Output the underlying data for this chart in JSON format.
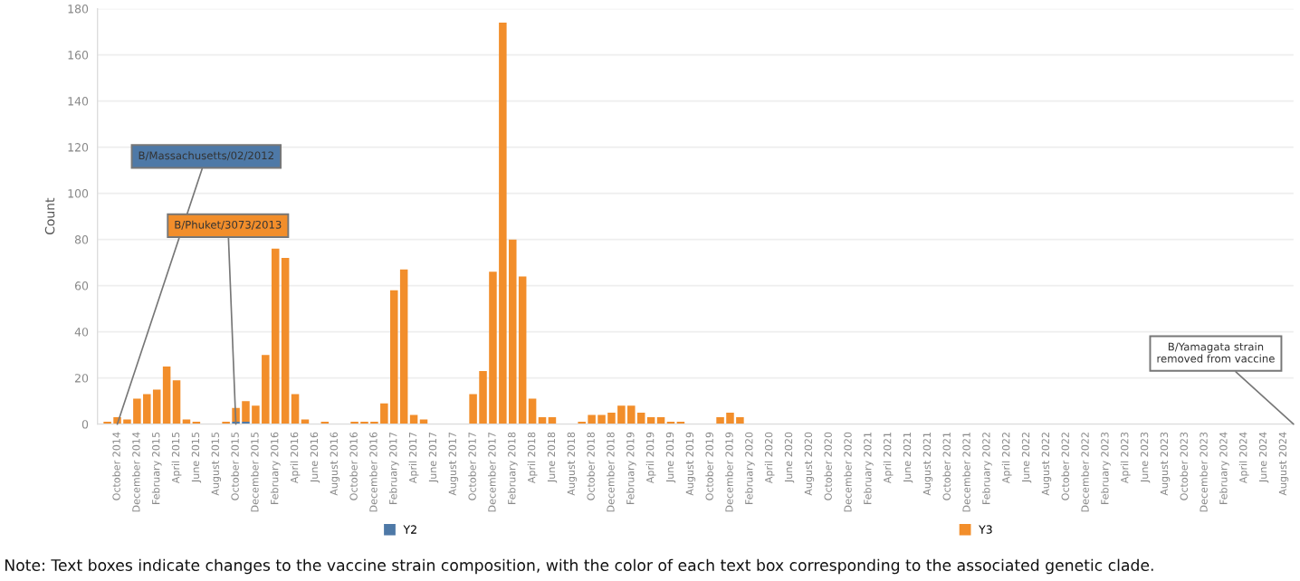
{
  "chart_data": {
    "type": "bar",
    "stacked": true,
    "ylabel": "Count",
    "ylim": [
      0,
      180
    ],
    "yticks": [
      0,
      20,
      40,
      60,
      80,
      100,
      120,
      140,
      160,
      180
    ],
    "grid": "y",
    "legend": "bottom",
    "categories": [
      null,
      "October 2014",
      null,
      "December 2014",
      null,
      "February 2015",
      null,
      "April 2015",
      null,
      "June 2015",
      null,
      "August 2015",
      null,
      "October 2015",
      null,
      "December 2015",
      null,
      "February 2016",
      null,
      "April 2016",
      null,
      "June 2016",
      null,
      "August 2016",
      null,
      "October 2016",
      null,
      "December 2016",
      null,
      "February 2017",
      null,
      "April 2017",
      null,
      "June 2017",
      null,
      "August 2017",
      null,
      "October 2017",
      null,
      "December 2017",
      null,
      "February 2018",
      null,
      "April 2018",
      null,
      "June 2018",
      null,
      "August 2018",
      null,
      "October 2018",
      null,
      "December 2018",
      null,
      "February 2019",
      null,
      "April 2019",
      null,
      "June 2019",
      null,
      "August 2019",
      null,
      "October 2019",
      null,
      "December 2019",
      null,
      "February 2020",
      null,
      "April 2020",
      null,
      "June 2020",
      null,
      "August 2020",
      null,
      "October 2020",
      null,
      "December 2020",
      null,
      "February 2021",
      null,
      "April 2021",
      null,
      "June 2021",
      null,
      "August 2021",
      null,
      "October 2021",
      null,
      "December 2021",
      null,
      "February 2022",
      null,
      "April 2022",
      null,
      "June 2022",
      null,
      "August 2022",
      null,
      "October 2022",
      null,
      "December 2022",
      null,
      "February 2023",
      null,
      "April 2023",
      null,
      "June 2023",
      null,
      "August 2023",
      null,
      "October 2023",
      null,
      "December 2023",
      null,
      "February 2024",
      null,
      "April 2024",
      null,
      "June 2024",
      null,
      "August 2024"
    ],
    "series": [
      {
        "name": "Y2",
        "color": "#4e79a7",
        "values": [
          null,
          null,
          null,
          null,
          null,
          null,
          null,
          null,
          null,
          null,
          null,
          null,
          null,
          1,
          1,
          null,
          null,
          null,
          null,
          null,
          null,
          null,
          null,
          null,
          null,
          null,
          null,
          null,
          null,
          null,
          null,
          null,
          null,
          null,
          null,
          null,
          null,
          null,
          null,
          null,
          null,
          null,
          null,
          null,
          null,
          null,
          null,
          null,
          null,
          null,
          null,
          null,
          null,
          null,
          null,
          null,
          null,
          null,
          null,
          null,
          null,
          null,
          null,
          null,
          null,
          null,
          null,
          null,
          null,
          null,
          null,
          null,
          null,
          null,
          null,
          null,
          null,
          null,
          null,
          null,
          null,
          null,
          null,
          null,
          null,
          null,
          null,
          null,
          null,
          null,
          null,
          null,
          null,
          null,
          null,
          null,
          null,
          null,
          null,
          null,
          null,
          null,
          null,
          null,
          null,
          null,
          null,
          null,
          null,
          null,
          null,
          null,
          null,
          null,
          null,
          null,
          null,
          null,
          null,
          null
        ]
      },
      {
        "name": "Y3",
        "color": "#f28e2b",
        "values": [
          1,
          3,
          2,
          11,
          13,
          15,
          25,
          19,
          2,
          1,
          null,
          null,
          1,
          6,
          9,
          8,
          30,
          76,
          72,
          13,
          2,
          null,
          1,
          null,
          null,
          1,
          1,
          1,
          9,
          58,
          67,
          4,
          2,
          null,
          null,
          null,
          null,
          13,
          23,
          66,
          174,
          80,
          64,
          11,
          3,
          3,
          null,
          null,
          1,
          4,
          4,
          5,
          8,
          8,
          5,
          3,
          3,
          1,
          1,
          null,
          null,
          null,
          3,
          5,
          3,
          null,
          null,
          null,
          null,
          null,
          null,
          null,
          null,
          null,
          null,
          null,
          null,
          null,
          null,
          null,
          null,
          null,
          null,
          null,
          null,
          null,
          null,
          null,
          null,
          null,
          null,
          null,
          null,
          null,
          null,
          null,
          null,
          null,
          null,
          null,
          null,
          null,
          null,
          null,
          null,
          null,
          null,
          null,
          null,
          null,
          null,
          null,
          null,
          null,
          null,
          null,
          null,
          null,
          null,
          null
        ]
      }
    ],
    "annotations": [
      {
        "text": "B/Massachusetts/02/2012",
        "x": "October 2014",
        "y": 0
      },
      {
        "text": "B/Phuket/3073/2013",
        "x": "October 2015",
        "y": 0
      },
      "B/Yamagata strain\nremoved from vaccine",
      "Note: Text boxes indicate changes to the vaccine strain composition, with the color of each text box corresponding to the associated genetic clade."
    ]
  }
}
